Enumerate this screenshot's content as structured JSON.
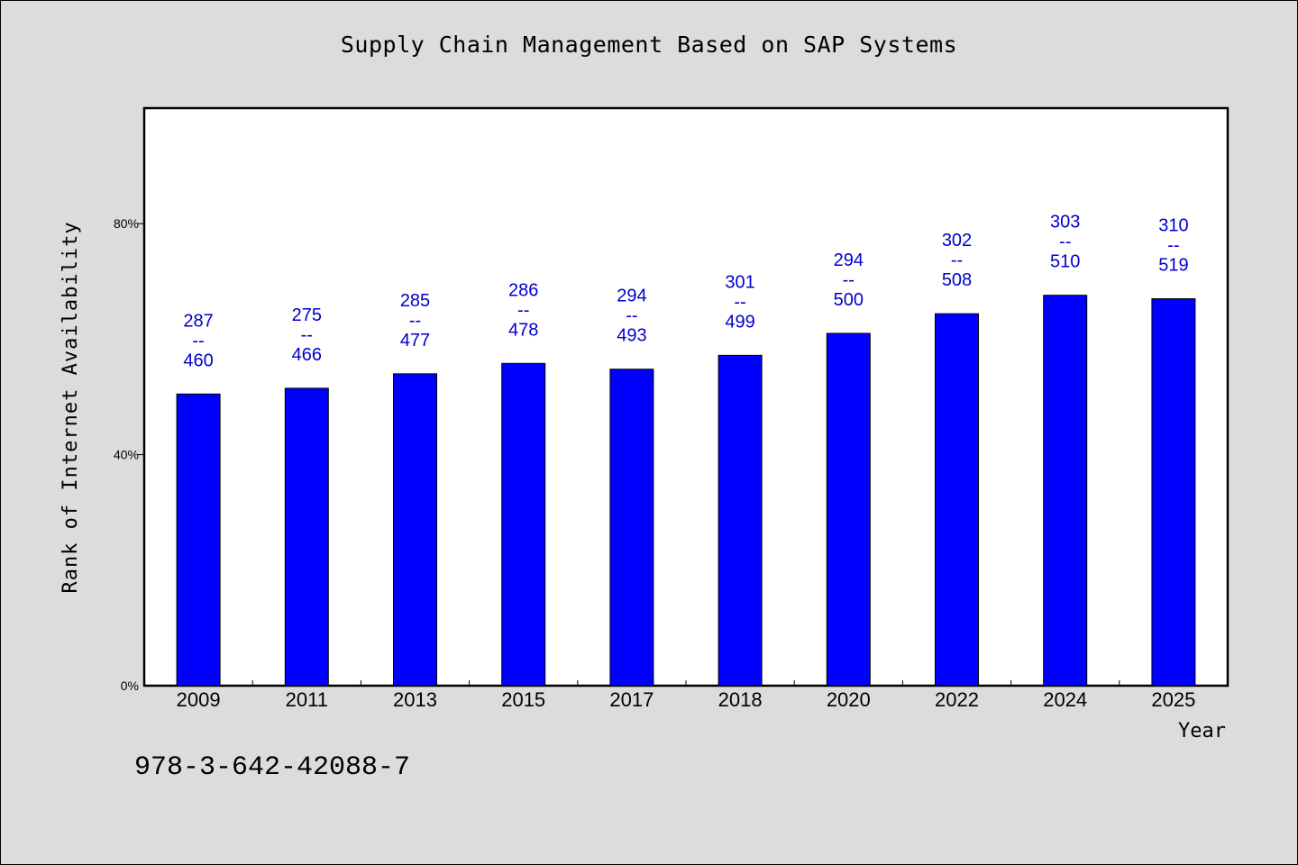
{
  "chart_data": {
    "type": "bar",
    "title": "Supply Chain Management Based on SAP Systems",
    "xlabel": "Year",
    "ylabel": "Rank of Internet Availability",
    "categories": [
      "2009",
      "2011",
      "2013",
      "2015",
      "2017",
      "2018",
      "2020",
      "2022",
      "2024",
      "2025"
    ],
    "values": [
      50.5,
      51.5,
      54.0,
      55.8,
      54.8,
      57.2,
      61.0,
      64.4,
      67.6,
      67.0
    ],
    "value_unit": "%",
    "ylim": [
      0,
      100
    ],
    "yticks": [
      0,
      40,
      80
    ],
    "ytick_labels": [
      "0%",
      "40%",
      "80%"
    ],
    "data_labels": [
      {
        "top": "287",
        "sep": "--",
        "bottom": "460"
      },
      {
        "top": "275",
        "sep": "--",
        "bottom": "466"
      },
      {
        "top": "285",
        "sep": "--",
        "bottom": "477"
      },
      {
        "top": "286",
        "sep": "--",
        "bottom": "478"
      },
      {
        "top": "294",
        "sep": "--",
        "bottom": "493"
      },
      {
        "top": "301",
        "sep": "--",
        "bottom": "499"
      },
      {
        "top": "294",
        "sep": "--",
        "bottom": "500"
      },
      {
        "top": "302",
        "sep": "--",
        "bottom": "508"
      },
      {
        "top": "303",
        "sep": "--",
        "bottom": "510"
      },
      {
        "top": "310",
        "sep": "--",
        "bottom": "519"
      }
    ],
    "bar_color": "#0000ff",
    "label_color": "#0000cc",
    "grid": false,
    "legend": "none"
  },
  "footer": {
    "isbn": "978-3-642-42088-7"
  },
  "colors": {
    "page_background": "#dcdcdc",
    "plot_background": "#ffffff"
  }
}
